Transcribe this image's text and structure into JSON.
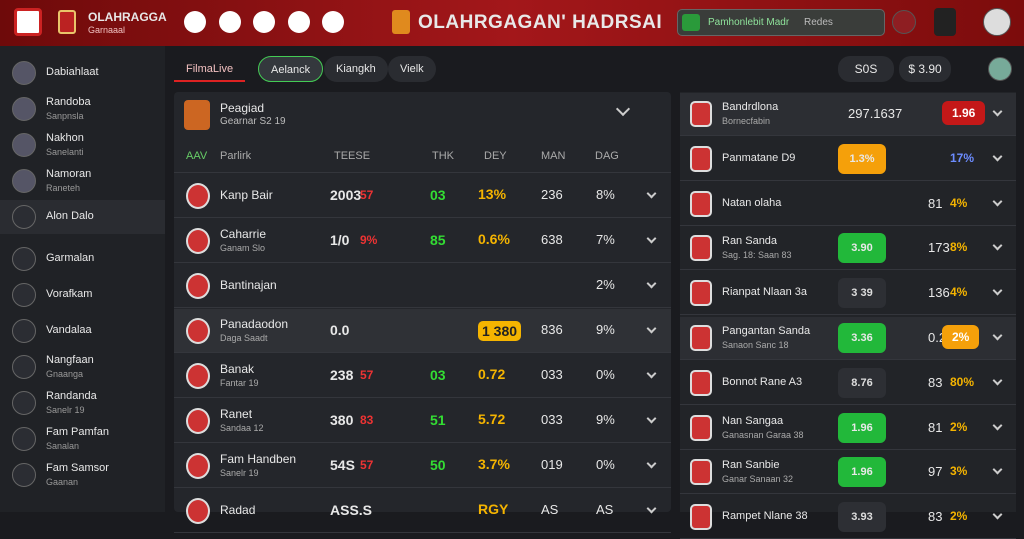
{
  "header": {
    "brand_title": "OLAHRAGGA",
    "brand_sub": "Garnaaal",
    "title": "OLAHRGAGAN' HADRSAI",
    "search": "Pamhonlebit Madr",
    "search_right": "Redes"
  },
  "sidebar": [
    {
      "label": "Dabiahlaat"
    },
    {
      "label": "Randoba",
      "sub": "Sanpnsla"
    },
    {
      "label": "Nakhon",
      "sub": "Sanelanti"
    },
    {
      "label": "Namoran",
      "sub": "Raneteh"
    },
    {
      "label": "Alon Dalo"
    },
    {
      "label": "Garmalan"
    },
    {
      "label": "Vorafkam"
    },
    {
      "label": "Vandalaa"
    },
    {
      "label": "Nangfaan",
      "sub": "Gnaanga"
    },
    {
      "label": "Randanda",
      "sub": "Sanelr 19"
    },
    {
      "label": "Fam Pamfan",
      "sub": "Sanalan"
    },
    {
      "label": "Fam Samsor",
      "sub": "Gaanan"
    }
  ],
  "tabs": [
    "FilmaLive",
    "Aelanck",
    "Kiangkh",
    "Vielk"
  ],
  "top_right": {
    "badge": "S0S",
    "balance": "$ 3.90"
  },
  "match": {
    "title": "Peagiad",
    "sub": "Gearnar S2 19"
  },
  "columns": [
    "AAV",
    "Parlirk",
    "TEESE",
    "THK",
    "DEY",
    "MAN",
    "DAG"
  ],
  "rows": [
    {
      "name": "Kanp Bair",
      "score": "2003",
      "score_red": "57",
      "thk": "03",
      "odd": "13%",
      "dey": "236",
      "pct": "8%"
    },
    {
      "name": "Caharrie",
      "sub": "Ganam Slo",
      "score": "1/0",
      "score_red": "9%",
      "thk": "85",
      "odd": "0.6%",
      "dey": "638",
      "pct": "7%"
    },
    {
      "name": "Bantinajan",
      "pct": "2%"
    },
    {
      "name": "Panadaodon",
      "sub": "Daga Saadt",
      "score": "0.0",
      "odd": "1 380",
      "dey": "836",
      "pct": "9%"
    },
    {
      "name": "Banak",
      "sub": "Fantar 19",
      "score": "238",
      "score_red": "57",
      "thk": "03",
      "odd": "0.72",
      "dey": "033",
      "pct": "0%"
    },
    {
      "name": "Ranet",
      "sub": "Sandaa 12",
      "score": "380",
      "score_red": "83",
      "thk": "51",
      "odd": "5.72",
      "dey": "033",
      "pct": "9%"
    },
    {
      "name": "Fam Handben",
      "sub": "Sanelr 19",
      "score": "54S",
      "score_red": "57",
      "thk": "50",
      "odd": "3.7%",
      "dey": "019",
      "pct": "0%"
    },
    {
      "name": "Radad",
      "score": "ASS.S",
      "odd": "RGY",
      "dey": "AS",
      "pct": "AS"
    }
  ],
  "right": [
    {
      "name": "Bandrdlona",
      "sub": "Bornecfabin",
      "val": "297.1637",
      "pct": "1.96",
      "pct_style": "red"
    },
    {
      "name": "Panmatane D9",
      "box": "1.3%",
      "box_style": "orange",
      "pct": "17%"
    },
    {
      "name": "Natan olaha",
      "val": "81",
      "pct": "4%"
    },
    {
      "name": "Ran Sanda",
      "sub": "Sag. 18: Saan 83",
      "box": "3.90",
      "box_style": "green",
      "val": "173",
      "pct": "8%"
    },
    {
      "name": "Rianpat Nlaan 3a",
      "box": "3 39",
      "box_style": "dark",
      "val": "136",
      "pct": "4%"
    },
    {
      "name": "Pangantan Sanda",
      "sub": "Sanaon Sanc 18",
      "box": "3.36",
      "box_style": "green",
      "val": "0.2",
      "pct": "2%",
      "pct_style": "orange"
    },
    {
      "name": "Bonnot Rane A3",
      "box": "8.76",
      "box_style": "dark",
      "val": "83",
      "pct": "80%"
    },
    {
      "name": "Nan Sangaa",
      "sub": "Ganasnan Garaa 38",
      "box": "1.96",
      "box_style": "green",
      "val": "81",
      "pct": "2%"
    },
    {
      "name": "Ran Sanbie",
      "sub": "Ganar Sanaan 32",
      "box": "1.96",
      "box_style": "green",
      "val": "97",
      "pct": "3%"
    },
    {
      "name": "Rampet Nlane 38",
      "box": "3.93",
      "box_style": "dark",
      "val": "83",
      "pct": "2%"
    }
  ]
}
